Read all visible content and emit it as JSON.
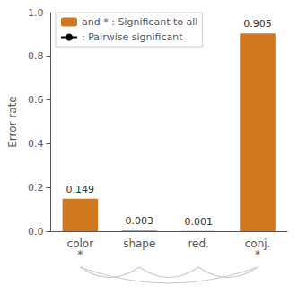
{
  "chart_data": {
    "type": "bar",
    "categories": [
      "color",
      "shape",
      "red.",
      "conj."
    ],
    "series": [
      {
        "name": "and * : Significant to all",
        "type": "bar",
        "color": "#d07820",
        "values": [
          0.149,
          0.003,
          0.001,
          0.905
        ]
      },
      {
        "name": ": Pairwise significant",
        "type": "line",
        "color": "#000000",
        "values": [
          null,
          null,
          null,
          null
        ]
      }
    ],
    "ylabel": "Error rate",
    "ylim": [
      0,
      1.0
    ],
    "yticks": [
      {
        "value": 0.0,
        "label": "0.0"
      },
      0.2,
      0.4,
      0.6,
      0.8,
      {
        "value": 1.0,
        "label": "1.0"
      }
    ],
    "data_labels": true,
    "grid": false,
    "legend": "upper left",
    "annotations": [
      {
        "text": "*",
        "category": "color"
      },
      {
        "text": "*",
        "category": "conj."
      }
    ],
    "brackets": [
      [
        "color",
        "shape"
      ],
      [
        "shape",
        "red."
      ],
      [
        "red.",
        "conj."
      ],
      [
        "color",
        "conj."
      ]
    ]
  }
}
